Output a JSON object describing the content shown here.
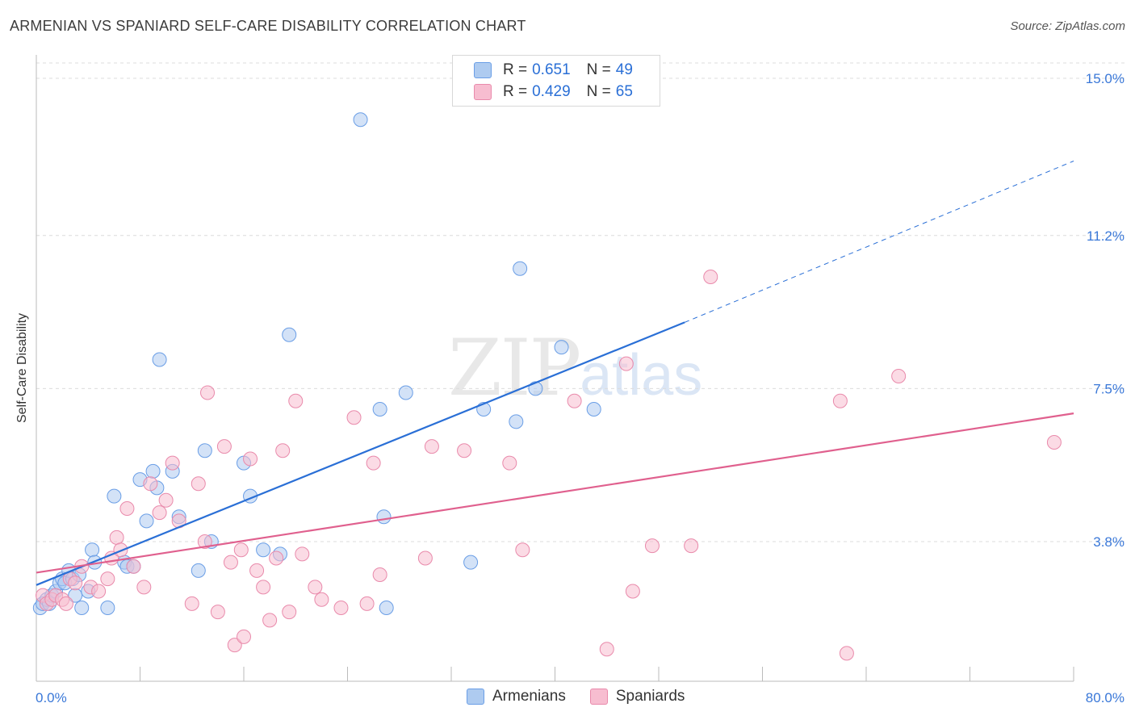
{
  "title": "ARMENIAN VS SPANIARD SELF-CARE DISABILITY CORRELATION CHART",
  "source": "Source: ZipAtlas.com",
  "watermark": {
    "zip": "ZIP",
    "atlas": "atlas"
  },
  "legend": {
    "rows": [
      {
        "r_label": "R =",
        "r_value": "0.651",
        "n_label": "N =",
        "n_value": "49",
        "color": "#aecbf0"
      },
      {
        "r_label": "R =",
        "r_value": "0.429",
        "n_label": "N =",
        "n_value": "65",
        "color": "#f7bdd0"
      }
    ]
  },
  "bottom_legend": [
    {
      "label": "Armenians",
      "color": "#aecbf0"
    },
    {
      "label": "Spaniards",
      "color": "#f7bdd0"
    }
  ],
  "chart_data": {
    "type": "scatter",
    "title": "ARMENIAN VS SPANIARD SELF-CARE DISABILITY CORRELATION CHART",
    "xlabel": "",
    "ylabel": "Self-Care Disability",
    "xlim": [
      0,
      80
    ],
    "ylim": [
      0,
      15.5
    ],
    "x_tick_labels": [
      "0.0%",
      "80.0%"
    ],
    "y_ticks": [
      3.8,
      7.5,
      11.2,
      15.0
    ],
    "y_tick_labels": [
      "3.8%",
      "7.5%",
      "11.2%",
      "15.0%"
    ],
    "grid": true,
    "legend_position": "top-center",
    "series": [
      {
        "name": "Armenians",
        "color": "#6a9ee6",
        "fill": "#aecbf0",
        "trend": {
          "x0": 0,
          "y0": 2.75,
          "x1": 50,
          "y1": 9.1,
          "dash_to_x": 80,
          "dash_to_y": 13.0,
          "color": "#2a6fd6"
        },
        "points": [
          [
            0.3,
            2.2
          ],
          [
            0.5,
            2.3
          ],
          [
            0.8,
            2.4
          ],
          [
            1.0,
            2.3
          ],
          [
            1.2,
            2.5
          ],
          [
            1.5,
            2.6
          ],
          [
            1.8,
            2.8
          ],
          [
            2.0,
            2.9
          ],
          [
            2.2,
            2.8
          ],
          [
            2.5,
            3.1
          ],
          [
            2.8,
            2.9
          ],
          [
            3.0,
            2.5
          ],
          [
            3.3,
            3.0
          ],
          [
            3.5,
            2.2
          ],
          [
            4.0,
            2.6
          ],
          [
            4.3,
            3.6
          ],
          [
            4.5,
            3.3
          ],
          [
            5.5,
            2.2
          ],
          [
            6.0,
            4.9
          ],
          [
            6.8,
            3.3
          ],
          [
            7.0,
            3.2
          ],
          [
            7.5,
            3.2
          ],
          [
            8.0,
            5.3
          ],
          [
            8.5,
            4.3
          ],
          [
            9.0,
            5.5
          ],
          [
            9.3,
            5.1
          ],
          [
            9.5,
            8.2
          ],
          [
            10.5,
            5.5
          ],
          [
            11.0,
            4.4
          ],
          [
            12.5,
            3.1
          ],
          [
            13.0,
            6.0
          ],
          [
            13.5,
            3.8
          ],
          [
            16.0,
            5.7
          ],
          [
            16.5,
            4.9
          ],
          [
            17.5,
            3.6
          ],
          [
            18.8,
            3.5
          ],
          [
            19.5,
            8.8
          ],
          [
            25.0,
            14.0
          ],
          [
            26.5,
            7.0
          ],
          [
            26.8,
            4.4
          ],
          [
            27.0,
            2.2
          ],
          [
            28.5,
            7.4
          ],
          [
            33.5,
            3.3
          ],
          [
            34.5,
            7.0
          ],
          [
            37.0,
            6.7
          ],
          [
            37.3,
            10.4
          ],
          [
            38.5,
            7.5
          ],
          [
            40.5,
            8.5
          ],
          [
            43.0,
            7.0
          ]
        ]
      },
      {
        "name": "Spaniards",
        "color": "#e98aab",
        "fill": "#f7bdd0",
        "trend": {
          "x0": 0,
          "y0": 3.05,
          "x1": 80,
          "y1": 6.9,
          "color": "#e0608e"
        },
        "points": [
          [
            0.5,
            2.5
          ],
          [
            0.8,
            2.3
          ],
          [
            1.2,
            2.4
          ],
          [
            1.5,
            2.5
          ],
          [
            2.0,
            2.4
          ],
          [
            2.3,
            2.3
          ],
          [
            2.6,
            2.9
          ],
          [
            3.0,
            2.8
          ],
          [
            3.5,
            3.2
          ],
          [
            4.2,
            2.7
          ],
          [
            4.8,
            2.6
          ],
          [
            5.5,
            2.9
          ],
          [
            5.8,
            3.4
          ],
          [
            6.2,
            3.9
          ],
          [
            6.5,
            3.6
          ],
          [
            7.0,
            4.6
          ],
          [
            7.5,
            3.2
          ],
          [
            8.3,
            2.7
          ],
          [
            8.8,
            5.2
          ],
          [
            9.5,
            4.5
          ],
          [
            10.0,
            4.8
          ],
          [
            10.5,
            5.7
          ],
          [
            11.0,
            4.3
          ],
          [
            12.0,
            2.3
          ],
          [
            12.5,
            5.2
          ],
          [
            13.0,
            3.8
          ],
          [
            13.2,
            7.4
          ],
          [
            14.0,
            2.1
          ],
          [
            14.5,
            6.1
          ],
          [
            15.0,
            3.3
          ],
          [
            15.3,
            1.3
          ],
          [
            15.8,
            3.6
          ],
          [
            16.0,
            1.5
          ],
          [
            16.5,
            5.8
          ],
          [
            17.0,
            3.1
          ],
          [
            17.5,
            2.7
          ],
          [
            18.0,
            1.9
          ],
          [
            18.5,
            3.4
          ],
          [
            19.0,
            6.0
          ],
          [
            19.5,
            2.1
          ],
          [
            20.0,
            7.2
          ],
          [
            20.5,
            3.5
          ],
          [
            21.5,
            2.7
          ],
          [
            22.0,
            2.4
          ],
          [
            23.5,
            2.2
          ],
          [
            24.5,
            6.8
          ],
          [
            25.5,
            2.3
          ],
          [
            26.0,
            5.7
          ],
          [
            26.5,
            3.0
          ],
          [
            30.5,
            6.1
          ],
          [
            33.0,
            6.0
          ],
          [
            36.5,
            5.7
          ],
          [
            41.5,
            7.2
          ],
          [
            44.0,
            1.2
          ],
          [
            45.5,
            8.1
          ],
          [
            46.0,
            2.6
          ],
          [
            47.5,
            3.7
          ],
          [
            50.5,
            3.7
          ],
          [
            52.0,
            10.2
          ],
          [
            62.5,
            1.1
          ],
          [
            62.0,
            7.2
          ],
          [
            78.5,
            6.2
          ],
          [
            66.5,
            7.8
          ],
          [
            37.5,
            3.6
          ],
          [
            30.0,
            3.4
          ]
        ]
      }
    ]
  }
}
